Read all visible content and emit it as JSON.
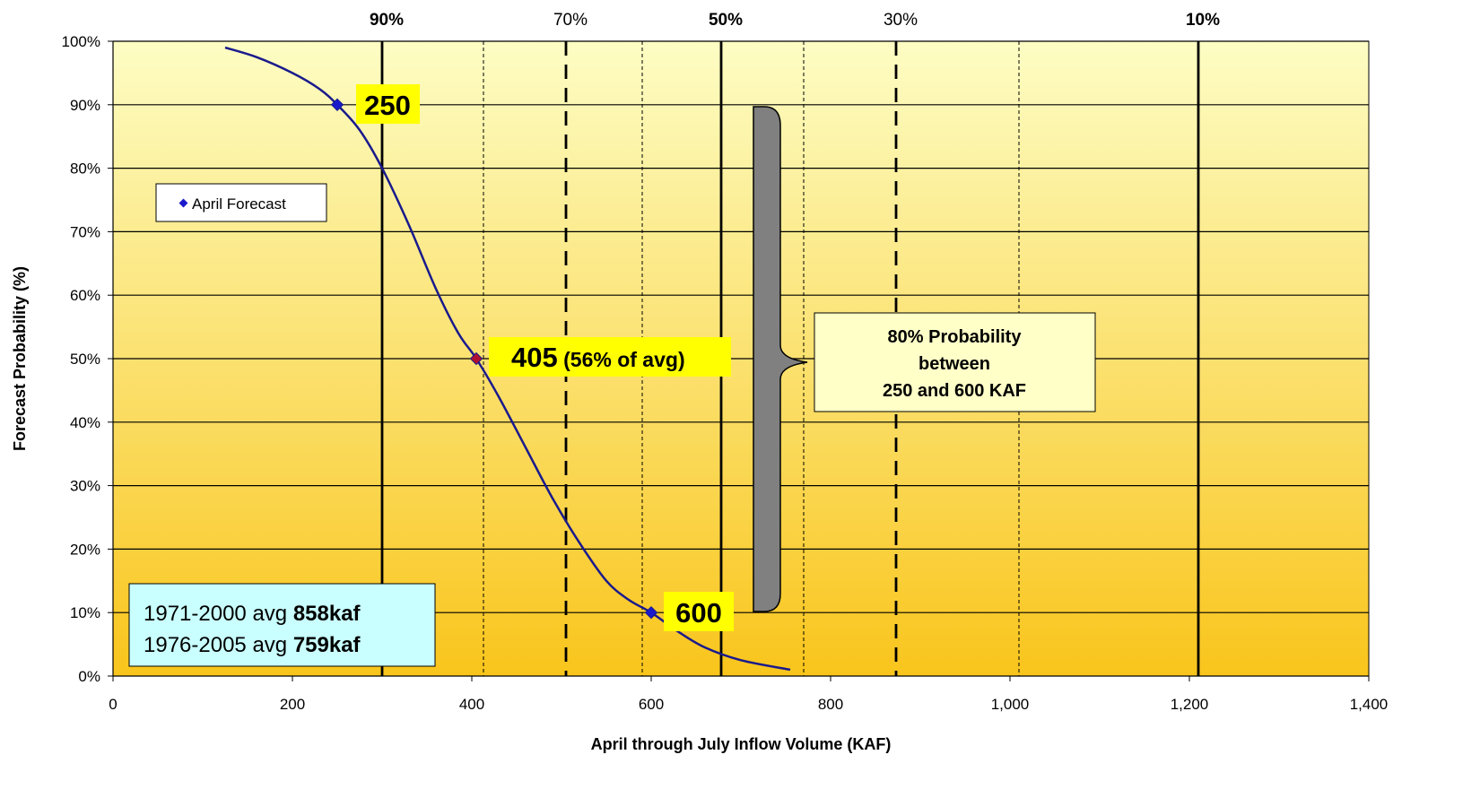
{
  "chart_data": {
    "type": "line",
    "xlabel": "April through  July Inflow Volume (KAF)",
    "ylabel": "Forecast Probability (%)",
    "xlim": [
      0,
      1400
    ],
    "ylim": [
      0,
      100
    ],
    "x_ticks": [
      0,
      200,
      400,
      600,
      800,
      1000,
      1200,
      1400
    ],
    "x_tick_labels": [
      "0",
      "200",
      "400",
      "600",
      "800",
      "1,000",
      "1,200",
      "1,400"
    ],
    "y_ticks": [
      0,
      10,
      20,
      30,
      40,
      50,
      60,
      70,
      80,
      90,
      100
    ],
    "y_tick_labels": [
      "0%",
      "10%",
      "20%",
      "30%",
      "40%",
      "50%",
      "60%",
      "70%",
      "80%",
      "90%",
      "100%"
    ],
    "grid": "horizontal",
    "legend": {
      "position": "upper-left",
      "entries": [
        "April Forecast"
      ]
    },
    "series": [
      {
        "name": "April Forecast",
        "color": "#1a1a8c",
        "x": [
          125,
          160,
          200,
          230,
          250,
          275,
          300,
          330,
          360,
          385,
          405,
          430,
          460,
          490,
          520,
          550,
          575,
          600,
          630,
          660,
          700,
          755
        ],
        "y": [
          99,
          97.5,
          95,
          92.5,
          90,
          86,
          80,
          71,
          61,
          54,
          50,
          44,
          36,
          28,
          21,
          15,
          12,
          10,
          7,
          4.5,
          2.5,
          1
        ]
      }
    ],
    "markers": [
      {
        "x": 250,
        "y": 90,
        "color": "#1a1acc"
      },
      {
        "x": 405,
        "y": 50,
        "color": "#b01030"
      },
      {
        "x": 600,
        "y": 10,
        "color": "#1a1acc"
      }
    ],
    "reference_lines": [
      {
        "x": 300,
        "label": "90%",
        "style": "solid",
        "bold_label": true
      },
      {
        "x": 413,
        "label": "",
        "style": "dotted"
      },
      {
        "x": 505,
        "label": "70%",
        "style": "dashed",
        "bold_label": false
      },
      {
        "x": 590,
        "label": "",
        "style": "dotted"
      },
      {
        "x": 678,
        "label": "50%",
        "style": "solid",
        "bold_label": true
      },
      {
        "x": 770,
        "label": "",
        "style": "dotted"
      },
      {
        "x": 873,
        "label": "30%",
        "style": "dashed",
        "bold_label": false
      },
      {
        "x": 1010,
        "label": "",
        "style": "dotted"
      },
      {
        "x": 1210,
        "label": "10%",
        "style": "solid",
        "bold_label": true
      }
    ],
    "annotations": {
      "label_250": "250",
      "label_405": "405",
      "label_405_suffix": " (56% of avg)",
      "label_600": "600",
      "range_box": [
        "80% Probability",
        "between",
        "250 and 600 KAF"
      ],
      "avg_box": [
        {
          "prefix": "1971-2000 avg ",
          "value": "858kaf"
        },
        {
          "prefix": "1976-2005 avg ",
          "value": "759kaf"
        }
      ]
    },
    "colors": {
      "background_top": "#fdfdc4",
      "background_bottom": "#f9c51c",
      "annotation_highlight": "#ffff00",
      "range_box_fill": "#ffffc8",
      "avg_box_fill": "#c9ffff",
      "brace_fill": "#808080"
    }
  }
}
